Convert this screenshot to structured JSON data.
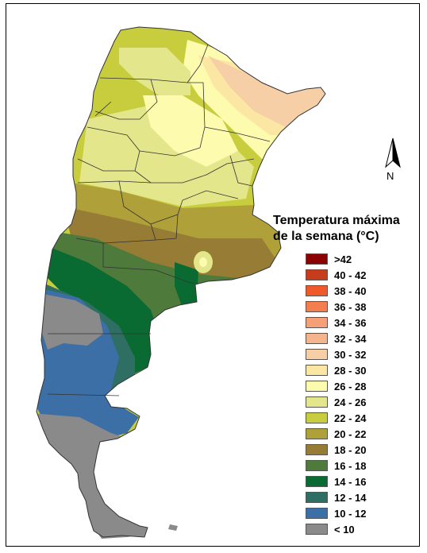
{
  "map": {
    "title_line1": "Temperatura máxima",
    "title_line2": "de la semana (°C)",
    "north_label": "N",
    "region": "Argentina",
    "legend": [
      {
        "label": ">42",
        "color": "#8b0000"
      },
      {
        "label": "40 - 42",
        "color": "#c83c1e"
      },
      {
        "label": "38 - 40",
        "color": "#f05a2a"
      },
      {
        "label": "36 - 38",
        "color": "#f57e50"
      },
      {
        "label": "34 - 36",
        "color": "#f5a077"
      },
      {
        "label": "32 - 34",
        "color": "#f5b58c"
      },
      {
        "label": "30 - 32",
        "color": "#f7cfa6"
      },
      {
        "label": "28 - 30",
        "color": "#fbe6a4"
      },
      {
        "label": "26 - 28",
        "color": "#fdfcae"
      },
      {
        "label": "24 - 26",
        "color": "#e3e68a"
      },
      {
        "label": "22 - 24",
        "color": "#c8cd3e"
      },
      {
        "label": "20 - 22",
        "color": "#b0a03a"
      },
      {
        "label": "18 - 20",
        "color": "#977c35"
      },
      {
        "label": "16 - 18",
        "color": "#4e7a3b"
      },
      {
        "label": "14 - 16",
        "color": "#0a6b32"
      },
      {
        "label": "12 - 14",
        "color": "#2f6e63"
      },
      {
        "label": "10 - 12",
        "color": "#3c6fa6"
      },
      {
        "label": "< 10",
        "color": "#8a8a8a"
      }
    ]
  }
}
